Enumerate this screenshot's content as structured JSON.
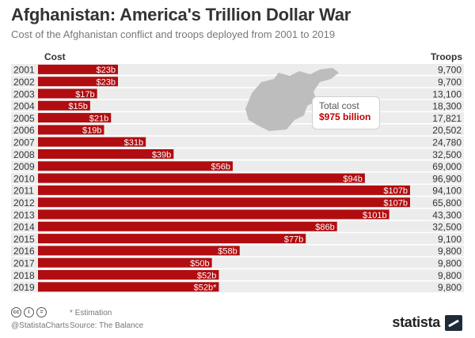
{
  "header": {
    "title": "Afghanistan: America's Trillion Dollar War",
    "subtitle": "Cost of the Afghanistan conflict and troops deployed from 2001 to 2019"
  },
  "columns": {
    "cost": "Cost",
    "troops": "Troops"
  },
  "callout": {
    "label": "Total cost",
    "value": "$975 billion"
  },
  "footer": {
    "footnote": "* Estimation",
    "source": "Source: The Balance",
    "handle": "@StatistaCharts",
    "brand": "statista",
    "license_icons": [
      "cc",
      "i",
      "="
    ]
  },
  "colors": {
    "bar": "#b10d10",
    "row_stripe": "#ececec",
    "accent": "#c00000"
  },
  "chart_data": {
    "type": "bar",
    "orientation": "horizontal",
    "title": "Afghanistan: America's Trillion Dollar War",
    "subtitle": "Cost of the Afghanistan conflict and troops deployed from 2001 to 2019",
    "categories": [
      "2001",
      "2002",
      "2003",
      "2004",
      "2005",
      "2006",
      "2007",
      "2008",
      "2009",
      "2010",
      "2011",
      "2012",
      "2013",
      "2014",
      "2015",
      "2016",
      "2017",
      "2018",
      "2019"
    ],
    "series": [
      {
        "name": "Cost",
        "values": [
          23,
          23,
          17,
          15,
          21,
          19,
          31,
          39,
          56,
          94,
          107,
          107,
          101,
          86,
          77,
          58,
          50,
          52,
          52
        ]
      }
    ],
    "value_labels": [
      "$23b",
      "$23b",
      "$17b",
      "$15b",
      "$21b",
      "$19b",
      "$31b",
      "$39b",
      "$56b",
      "$94b",
      "$107b",
      "$107b",
      "$101b",
      "$86b",
      "$77b",
      "$58b",
      "$50b",
      "$52b",
      "$52b*"
    ],
    "troops": [
      "9,700",
      "9,700",
      "13,100",
      "18,300",
      "17,821",
      "20,502",
      "24,780",
      "32,500",
      "69,000",
      "96,900",
      "94,100",
      "65,800",
      "43,300",
      "32,500",
      "9,100",
      "9,800",
      "9,800",
      "9,800",
      "9,800"
    ],
    "xlim": [
      0,
      107
    ],
    "grid": false,
    "legend": "none"
  }
}
